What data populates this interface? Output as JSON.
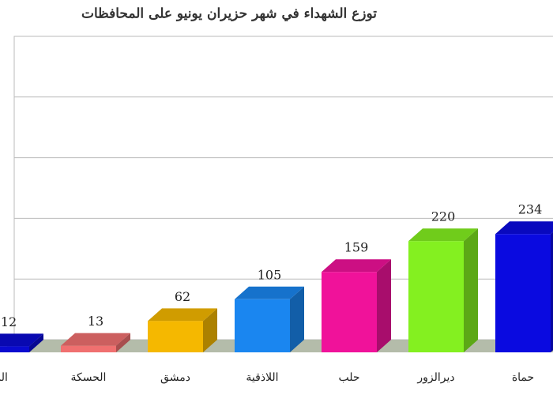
{
  "chart_data": {
    "type": "bar3d",
    "title": "توزع الشهداء في شهر حزيران يونيو على المحافظات",
    "categories": [
      "الر",
      "الحسكة",
      "دمشق",
      "اللاذقية",
      "حلب",
      "ديرالزور",
      "حماة"
    ],
    "values": [
      12,
      13,
      62,
      105,
      159,
      220,
      234
    ],
    "colors": [
      "#0a0ad0",
      "#f07070",
      "#f5b800",
      "#1a86f0",
      "#f0129a",
      "#84f020",
      "#0a0ae0"
    ],
    "ylim": [
      0,
      600
    ],
    "yticks": [
      0,
      120,
      240,
      360,
      480,
      600
    ],
    "grid": true
  }
}
